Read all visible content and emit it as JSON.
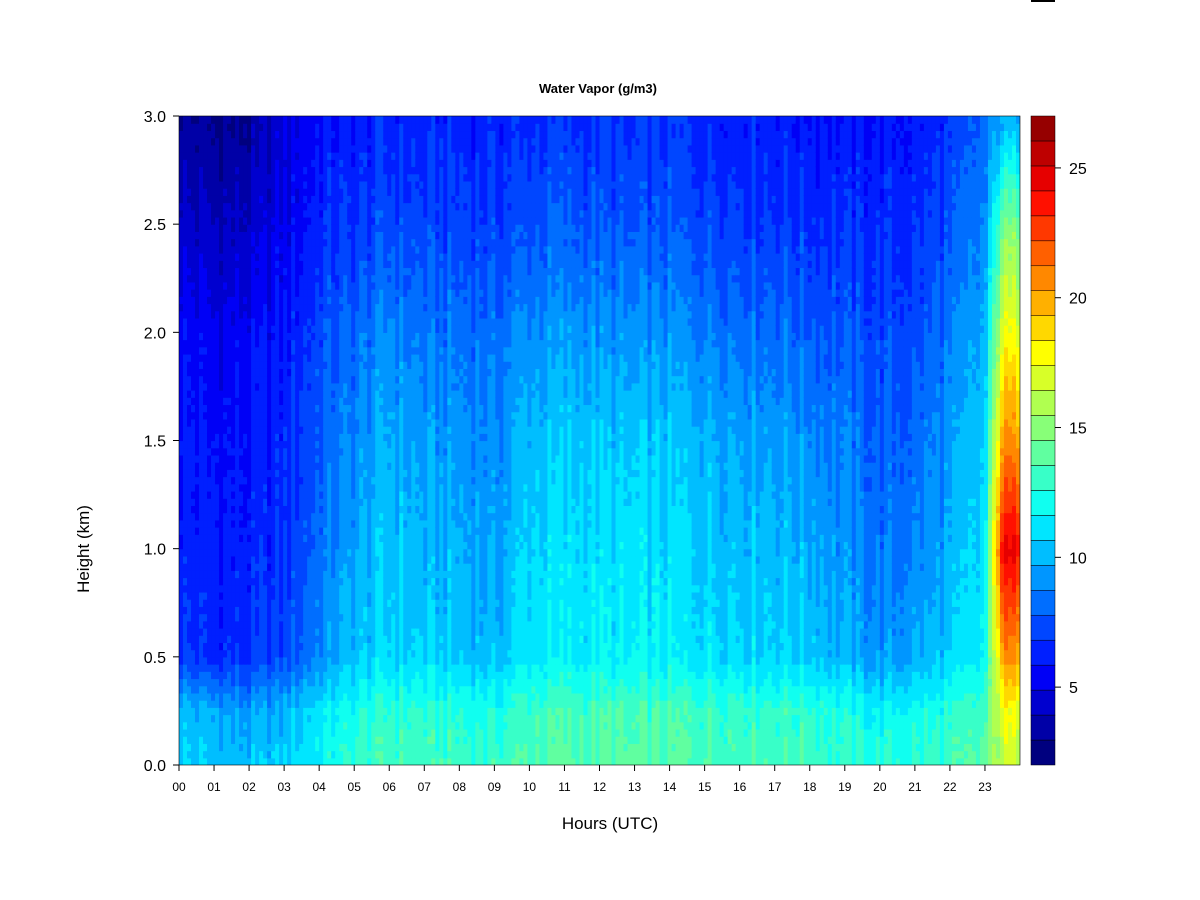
{
  "chart_data": {
    "type": "heatmap",
    "title": "Water Vapor (g/m3)",
    "xlabel": "Hours (UTC)",
    "ylabel": "Height (km)",
    "xlim": [
      0,
      24
    ],
    "ylim": [
      0.0,
      3.0
    ],
    "x_ticks": [
      0,
      1,
      2,
      3,
      4,
      5,
      6,
      7,
      8,
      9,
      10,
      11,
      12,
      13,
      14,
      15,
      16,
      17,
      18,
      19,
      20,
      21,
      22,
      23
    ],
    "x_tick_labels": [
      "00",
      "01",
      "02",
      "03",
      "04",
      "05",
      "06",
      "07",
      "08",
      "09",
      "10",
      "11",
      "12",
      "13",
      "14",
      "15",
      "16",
      "17",
      "18",
      "19",
      "20",
      "21",
      "22",
      "23"
    ],
    "y_ticks": [
      0.0,
      0.5,
      1.0,
      1.5,
      2.0,
      2.5,
      3.0
    ],
    "y_tick_labels": [
      "0.0",
      "0.5",
      "1.0",
      "1.5",
      "2.0",
      "2.5",
      "3.0"
    ],
    "colorbar": {
      "min": 2,
      "max": 27,
      "levels": [
        2,
        3,
        4,
        5,
        6,
        7,
        8,
        9,
        10,
        11,
        12,
        13,
        14,
        15,
        16,
        17,
        18,
        19,
        20,
        21,
        22,
        23,
        24,
        25,
        26,
        27
      ],
      "tick_values": [
        5,
        10,
        15,
        20,
        25
      ],
      "tick_labels": [
        "5",
        "10",
        "15",
        "20",
        "25"
      ],
      "colors": [
        "#00007f",
        "#0000a7",
        "#0000cf",
        "#0000f6",
        "#001fff",
        "#0046ff",
        "#006eff",
        "#0096ff",
        "#00beff",
        "#00e6ff",
        "#10fff0",
        "#38ffc8",
        "#60ffa0",
        "#88ff78",
        "#b0ff50",
        "#d8ff28",
        "#ffff00",
        "#ffd800",
        "#ffb000",
        "#ff8800",
        "#ff6000",
        "#ff3800",
        "#ff1000",
        "#e60000",
        "#be0000",
        "#960000"
      ]
    },
    "grid": false,
    "data_note_hours": [
      0,
      1,
      2,
      3,
      4,
      5,
      6,
      7,
      8,
      9,
      10,
      11,
      12,
      13,
      14,
      15,
      16,
      17,
      18,
      19,
      20,
      21,
      22,
      23,
      23.5
    ],
    "heights_km": [
      0.0,
      0.25,
      0.5,
      1.0,
      1.5,
      2.0,
      2.5,
      3.0
    ],
    "values": [
      [
        11.2,
        10.5,
        7.2,
        6.5,
        6.2,
        5.8,
        4.6,
        3.2
      ],
      [
        10.8,
        10.0,
        6.8,
        6.2,
        5.9,
        5.2,
        4.0,
        2.8
      ],
      [
        10.6,
        9.6,
        6.8,
        6.3,
        6.0,
        5.4,
        4.2,
        3.0
      ],
      [
        11.0,
        10.2,
        7.4,
        6.8,
        6.6,
        6.1,
        5.2,
        4.6
      ],
      [
        12.2,
        11.6,
        9.2,
        8.6,
        8.0,
        7.6,
        6.6,
        6.0
      ],
      [
        13.2,
        12.6,
        10.6,
        9.8,
        9.2,
        8.2,
        7.0,
        6.2
      ],
      [
        13.8,
        13.2,
        11.2,
        10.8,
        10.2,
        9.2,
        7.6,
        6.6
      ],
      [
        13.6,
        13.0,
        11.0,
        10.2,
        9.6,
        8.6,
        7.4,
        6.4
      ],
      [
        13.6,
        13.0,
        10.8,
        10.2,
        9.6,
        8.6,
        7.4,
        6.6
      ],
      [
        13.4,
        12.6,
        10.4,
        9.6,
        9.2,
        8.4,
        7.2,
        6.4
      ],
      [
        14.2,
        13.6,
        11.8,
        11.2,
        10.6,
        9.4,
        7.8,
        6.8
      ],
      [
        14.2,
        13.8,
        11.8,
        11.4,
        10.8,
        9.6,
        8.0,
        7.0
      ],
      [
        14.2,
        13.8,
        11.8,
        11.4,
        10.8,
        9.4,
        7.8,
        6.8
      ],
      [
        14.2,
        13.6,
        11.8,
        11.4,
        10.6,
        9.2,
        7.6,
        6.8
      ],
      [
        14.2,
        13.8,
        11.8,
        11.2,
        10.6,
        9.4,
        7.8,
        6.8
      ],
      [
        14.0,
        13.6,
        11.6,
        11.0,
        10.4,
        9.0,
        7.6,
        6.6
      ],
      [
        14.0,
        13.6,
        11.4,
        10.8,
        10.2,
        8.8,
        7.4,
        6.6
      ],
      [
        13.8,
        13.4,
        11.2,
        10.6,
        9.8,
        8.6,
        7.2,
        6.4
      ],
      [
        13.8,
        13.4,
        11.0,
        10.2,
        9.4,
        8.2,
        7.0,
        6.2
      ],
      [
        13.4,
        12.6,
        10.2,
        9.4,
        8.8,
        7.8,
        6.8,
        6.0
      ],
      [
        13.0,
        12.0,
        9.4,
        8.6,
        8.0,
        7.4,
        6.6,
        6.0
      ],
      [
        13.2,
        12.4,
        10.0,
        9.0,
        8.4,
        7.6,
        6.8,
        6.2
      ],
      [
        13.6,
        12.8,
        10.8,
        10.0,
        9.4,
        8.6,
        7.6,
        6.8
      ],
      [
        14.2,
        13.6,
        12.0,
        11.4,
        11.0,
        10.0,
        9.0,
        8.2
      ],
      [
        17.0,
        18.0,
        21.0,
        25.0,
        21.0,
        18.0,
        15.0,
        10.0
      ]
    ]
  }
}
